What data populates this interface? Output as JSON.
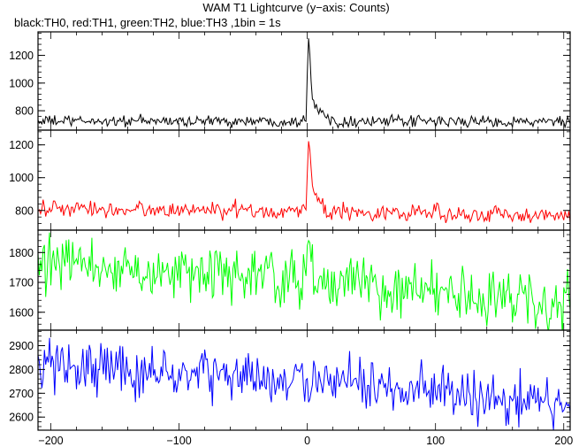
{
  "chart_data": {
    "type": "line",
    "title": "WAM T1 Lightcurve (y−axis: Counts)",
    "subtitle": "black:TH0, red:TH1, green:TH2, blue:TH3 ,1bin = 1s",
    "xlim": [
      -210,
      205
    ],
    "x_ticks": [
      -200,
      -100,
      0,
      100,
      200
    ],
    "x_tick_labels": [
      "−200",
      "−100",
      "0",
      "100",
      "200"
    ],
    "panels": [
      {
        "series_name": "TH0",
        "color": "#000000",
        "ylim": [
          660,
          1370
        ],
        "y_ticks": [
          800,
          1000,
          1200
        ],
        "y_tick_labels": [
          "800",
          "1000",
          "1200"
        ],
        "baseline": [
          [
            -205,
            725
          ],
          [
            0,
            725
          ],
          [
            200,
            720
          ]
        ],
        "noise": 20,
        "burst": [
          [
            -5,
            0
          ],
          [
            -1,
            20
          ],
          [
            0,
            380
          ],
          [
            1,
            620
          ],
          [
            2,
            500
          ],
          [
            3,
            300
          ],
          [
            4,
            180
          ],
          [
            6,
            120
          ],
          [
            8,
            100
          ],
          [
            10,
            70
          ],
          [
            13,
            40
          ],
          [
            17,
            15
          ],
          [
            22,
            0
          ]
        ]
      },
      {
        "series_name": "TH1",
        "color": "#ff0000",
        "ylim": [
          680,
          1290
        ],
        "y_ticks": [
          800,
          1000,
          1200
        ],
        "y_tick_labels": [
          "800",
          "1000",
          "1200"
        ],
        "baseline": [
          [
            -205,
            810
          ],
          [
            0,
            795
          ],
          [
            200,
            770
          ]
        ],
        "noise": 25,
        "burst": [
          [
            -5,
            0
          ],
          [
            -1,
            20
          ],
          [
            0,
            250
          ],
          [
            1,
            420
          ],
          [
            2,
            380
          ],
          [
            3,
            220
          ],
          [
            4,
            140
          ],
          [
            6,
            110
          ],
          [
            8,
            80
          ],
          [
            10,
            50
          ],
          [
            13,
            20
          ],
          [
            17,
            0
          ]
        ]
      },
      {
        "series_name": "TH2",
        "color": "#00ff00",
        "ylim": [
          1540,
          1875
        ],
        "y_ticks": [
          1600,
          1700,
          1800
        ],
        "y_tick_labels": [
          "1600",
          "1700",
          "1800"
        ],
        "baseline": [
          [
            -205,
            1760
          ],
          [
            0,
            1710
          ],
          [
            200,
            1625
          ]
        ],
        "noise": 45,
        "burst": [
          [
            -4,
            0
          ],
          [
            0,
            50
          ],
          [
            2,
            90
          ],
          [
            4,
            40
          ],
          [
            8,
            0
          ]
        ]
      },
      {
        "series_name": "TH3",
        "color": "#0000ff",
        "ylim": [
          2545,
          2965
        ],
        "y_ticks": [
          2600,
          2700,
          2800,
          2900
        ],
        "y_tick_labels": [
          "2600",
          "2700",
          "2800",
          "2900"
        ],
        "baseline": [
          [
            -205,
            2820
          ],
          [
            0,
            2750
          ],
          [
            200,
            2655
          ]
        ],
        "noise": 55,
        "burst": []
      }
    ]
  }
}
